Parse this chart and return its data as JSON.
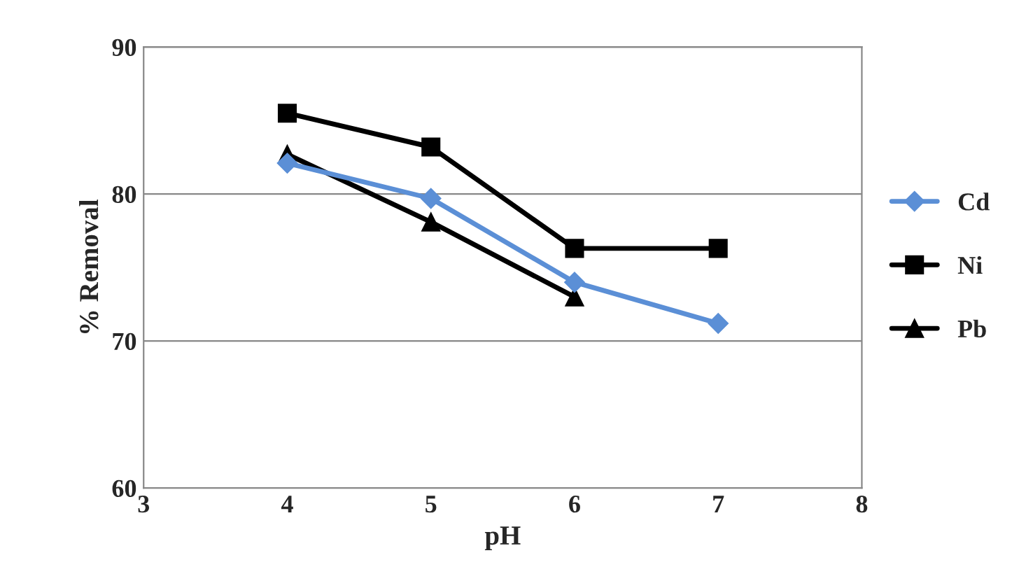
{
  "chart_data": {
    "type": "line",
    "xlabel": "pH",
    "ylabel": "% Removal",
    "xlim": [
      3,
      8
    ],
    "xticks": [
      3,
      4,
      5,
      6,
      7,
      8
    ],
    "ylim": [
      60,
      90
    ],
    "yticks": [
      60,
      70,
      80,
      90
    ],
    "grid": "y",
    "legend": "right",
    "series": [
      {
        "name": "Cd",
        "color": "#5b8fd6",
        "marker": "diamond",
        "x": [
          4,
          5,
          6,
          7
        ],
        "values": [
          82.1,
          79.7,
          74.0,
          71.2
        ]
      },
      {
        "name": "Ni",
        "color": "#000000",
        "marker": "square",
        "x": [
          4,
          5,
          6,
          7
        ],
        "values": [
          85.5,
          83.2,
          76.3,
          76.3
        ]
      },
      {
        "name": "Pb",
        "color": "#000000",
        "marker": "triangle",
        "x": [
          4,
          5,
          6
        ],
        "values": [
          82.7,
          78.1,
          73.0
        ]
      }
    ]
  }
}
